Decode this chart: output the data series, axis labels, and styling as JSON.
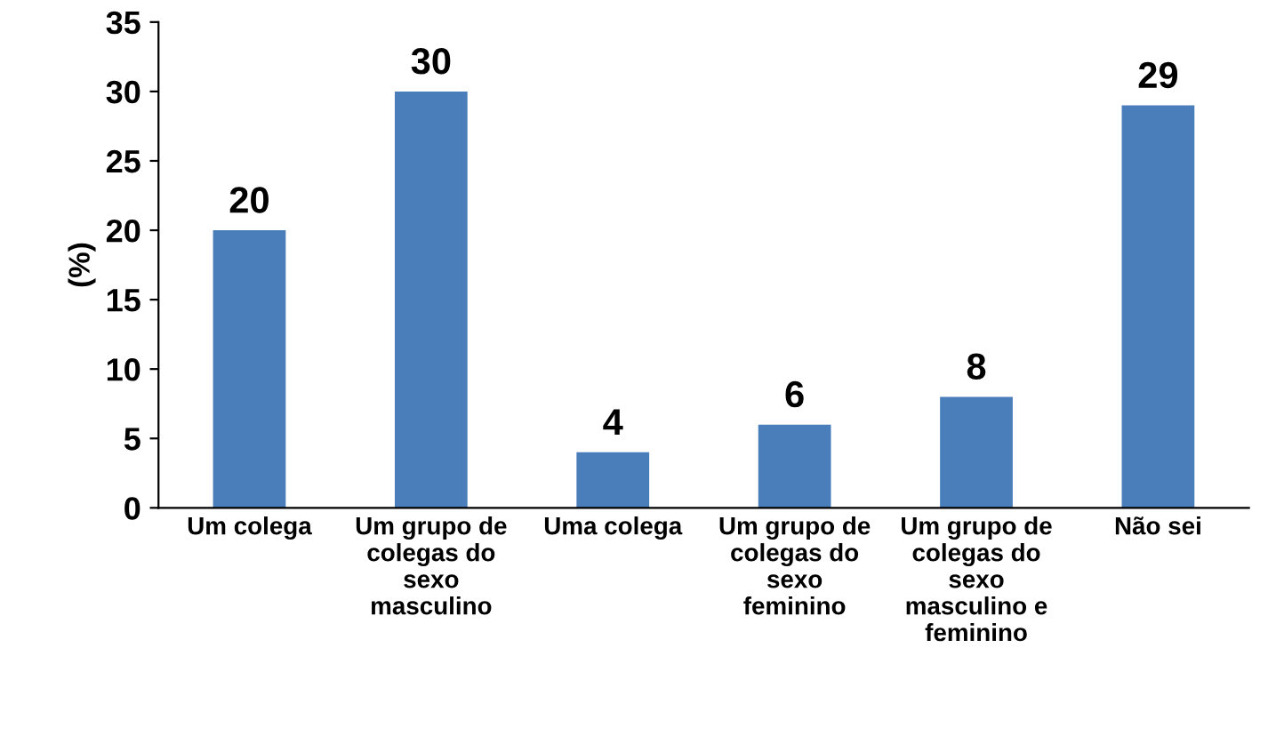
{
  "chart_data": {
    "type": "bar",
    "ylabel": "(%)",
    "categories": [
      "Um colega",
      "Um grupo de colegas do sexo masculino",
      "Uma colega",
      "Um grupo de colegas do sexo feminino",
      "Um grupo de colegas do sexo masculino e feminino",
      "Não sei"
    ],
    "values": [
      20,
      30,
      4,
      6,
      8,
      29
    ],
    "color": "#4a7ebb",
    "ylim": [
      0,
      35
    ],
    "yticks": [
      0,
      5,
      10,
      15,
      20,
      25,
      30,
      35
    ],
    "grid": false,
    "data_labels": true
  }
}
